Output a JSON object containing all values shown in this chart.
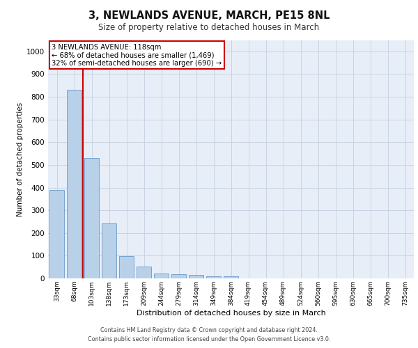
{
  "title1": "3, NEWLANDS AVENUE, MARCH, PE15 8NL",
  "title2": "Size of property relative to detached houses in March",
  "xlabel": "Distribution of detached houses by size in March",
  "ylabel": "Number of detached properties",
  "bar_categories": [
    "33sqm",
    "68sqm",
    "103sqm",
    "138sqm",
    "173sqm",
    "209sqm",
    "244sqm",
    "279sqm",
    "314sqm",
    "349sqm",
    "384sqm",
    "419sqm",
    "454sqm",
    "489sqm",
    "524sqm",
    "560sqm",
    "595sqm",
    "630sqm",
    "665sqm",
    "700sqm",
    "735sqm"
  ],
  "bar_values": [
    390,
    830,
    530,
    243,
    98,
    52,
    20,
    18,
    15,
    10,
    8,
    0,
    0,
    0,
    0,
    0,
    0,
    0,
    0,
    0,
    0
  ],
  "bar_color": "#b8d0e8",
  "bar_edgecolor": "#6699cc",
  "grid_color": "#c8d4e4",
  "background_color": "#e8eef8",
  "red_line_x": 1.5,
  "annotation_line1": "3 NEWLANDS AVENUE: 118sqm",
  "annotation_line2": "← 68% of detached houses are smaller (1,469)",
  "annotation_line3": "32% of semi-detached houses are larger (690) →",
  "annotation_box_color": "#ffffff",
  "annotation_border_color": "#cc0000",
  "ylim": [
    0,
    1050
  ],
  "yticks": [
    0,
    100,
    200,
    300,
    400,
    500,
    600,
    700,
    800,
    900,
    1000
  ],
  "footer1": "Contains HM Land Registry data © Crown copyright and database right 2024.",
  "footer2": "Contains public sector information licensed under the Open Government Licence v3.0."
}
